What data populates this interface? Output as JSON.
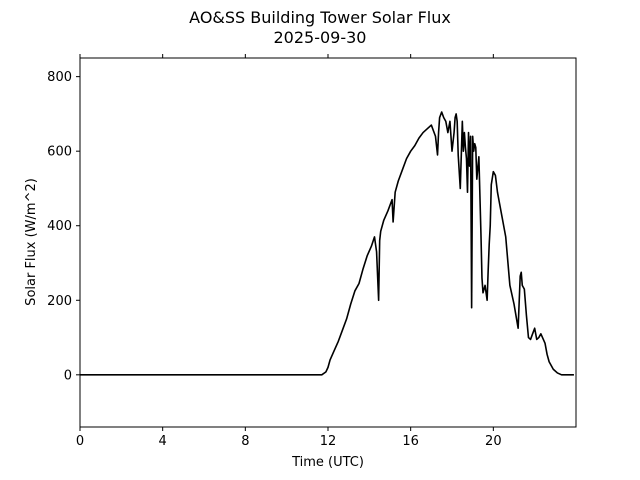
{
  "chart_data": {
    "type": "line",
    "title": "AO&SS Building Tower Solar Flux",
    "subtitle": "2025-09-30",
    "xlabel": "Time (UTC)",
    "ylabel": "Solar Flux (W/m^2)",
    "xlim": [
      0,
      24
    ],
    "ylim": [
      -140,
      850
    ],
    "xticks": [
      0,
      4,
      8,
      12,
      16,
      20
    ],
    "yticks": [
      0,
      200,
      400,
      600,
      800
    ],
    "grid": false,
    "line_color": "#000000",
    "series": [
      {
        "x": [
          0,
          11.7,
          11.9,
          12.0,
          12.1,
          12.3,
          12.5,
          12.7,
          12.9,
          13.1,
          13.3,
          13.5,
          13.7,
          13.9,
          14.1,
          14.25,
          14.35,
          14.45,
          14.5,
          14.55,
          14.7,
          14.9,
          15.1,
          15.15,
          15.25,
          15.4,
          15.6,
          15.8,
          16.0,
          16.2,
          16.4,
          16.6,
          16.8,
          17.0,
          17.2,
          17.3,
          17.35,
          17.4,
          17.5,
          17.6,
          17.7,
          17.8,
          17.9,
          18.0,
          18.1,
          18.15,
          18.2,
          18.25,
          18.3,
          18.4,
          18.5,
          18.55,
          18.6,
          18.65,
          18.7,
          18.75,
          18.8,
          18.85,
          18.9,
          18.95,
          19.0,
          19.05,
          19.1,
          19.15,
          19.2,
          19.3,
          19.4,
          19.45,
          19.5,
          19.6,
          19.7,
          19.75,
          19.8,
          19.85,
          19.9,
          20.0,
          20.1,
          20.2,
          20.3,
          20.4,
          20.5,
          20.6,
          20.8,
          21.0,
          21.2,
          21.3,
          21.35,
          21.4,
          21.5,
          21.6,
          21.7,
          21.8,
          21.9,
          22.0,
          22.1,
          22.2,
          22.3,
          22.5,
          22.6,
          22.7,
          22.8,
          22.9,
          23.1,
          23.3,
          23.5,
          23.6,
          23.7,
          23.8,
          23.9
        ],
        "y": [
          0,
          0,
          8,
          20,
          40,
          65,
          90,
          120,
          150,
          190,
          225,
          245,
          285,
          320,
          345,
          370,
          330,
          200,
          360,
          385,
          415,
          440,
          470,
          410,
          490,
          520,
          550,
          580,
          600,
          615,
          635,
          650,
          660,
          670,
          640,
          590,
          650,
          690,
          705,
          690,
          680,
          650,
          680,
          600,
          650,
          690,
          700,
          680,
          590,
          500,
          680,
          600,
          650,
          610,
          580,
          490,
          650,
          560,
          640,
          180,
          640,
          600,
          620,
          610,
          525,
          585,
          380,
          260,
          220,
          240,
          200,
          280,
          350,
          400,
          510,
          545,
          535,
          490,
          460,
          430,
          400,
          370,
          240,
          190,
          125,
          265,
          275,
          240,
          230,
          160,
          100,
          95,
          110,
          125,
          95,
          100,
          110,
          85,
          55,
          35,
          25,
          15,
          5,
          0,
          0,
          0,
          0,
          0,
          0
        ]
      }
    ]
  }
}
